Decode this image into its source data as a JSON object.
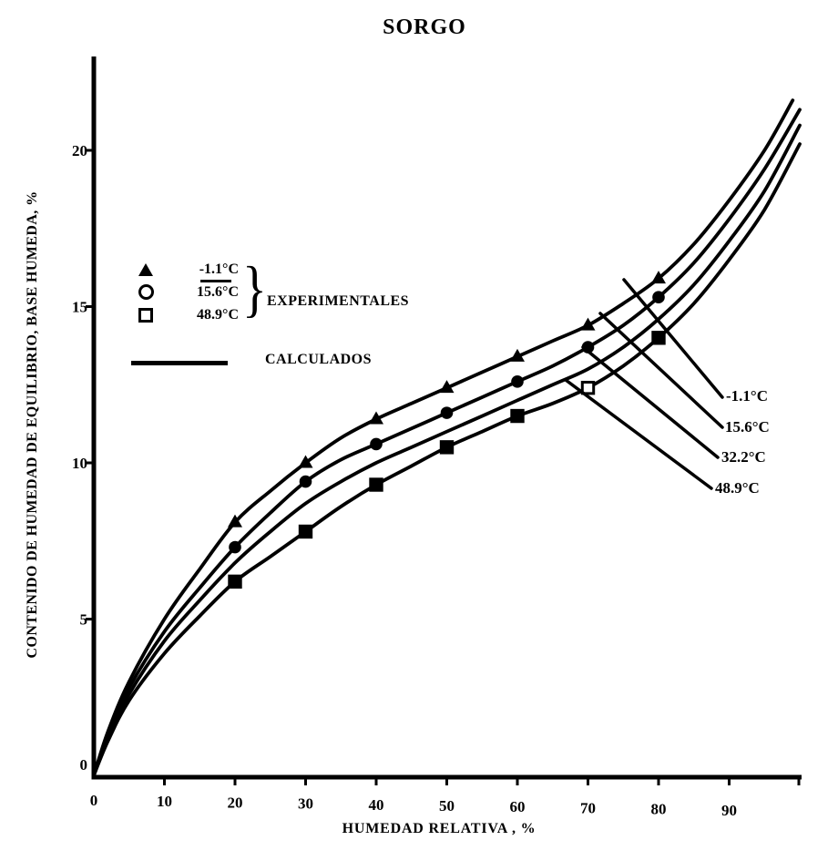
{
  "title": "SORGO",
  "colors": {
    "ink": "#000000",
    "paper": "#ffffff"
  },
  "legend": {
    "experimental_label": "EXPERIMENTALES",
    "calculated_label": "CALCULADOS",
    "items": [
      {
        "marker": "triangle-icon",
        "label": "-1.1°C"
      },
      {
        "marker": "circle-icon",
        "label": "15.6°C"
      },
      {
        "marker": "square-icon",
        "label": "48.9°C"
      }
    ]
  },
  "curve_labels": [
    {
      "label": "-1.1°C"
    },
    {
      "label": "15.6°C"
    },
    {
      "label": "32.2°C"
    },
    {
      "label": "48.9°C"
    }
  ],
  "chart_data": {
    "type": "line",
    "title": "SORGO",
    "xlabel": "HUMEDAD RELATIVA , %",
    "ylabel": "CONTENIDO DE HUMEDAD DE EQUILIBRIO, BASE HUMEDA, %",
    "xlim": [
      0,
      100
    ],
    "ylim": [
      0,
      23
    ],
    "x_ticks": [
      0,
      10,
      20,
      30,
      40,
      50,
      60,
      70,
      80,
      90
    ],
    "y_ticks": [
      0,
      5,
      10,
      15,
      20
    ],
    "grid": false,
    "legend_position": "upper-left-inside",
    "series": [
      {
        "name": "-1.1°C",
        "marker": "triangle",
        "curve": [
          [
            0,
            0
          ],
          [
            2,
            1.4
          ],
          [
            5,
            3.0
          ],
          [
            10,
            5.0
          ],
          [
            15,
            6.6
          ],
          [
            20,
            8.1
          ],
          [
            25,
            9.1
          ],
          [
            30,
            10.0
          ],
          [
            35,
            10.8
          ],
          [
            40,
            11.4
          ],
          [
            45,
            11.9
          ],
          [
            50,
            12.4
          ],
          [
            55,
            12.9
          ],
          [
            60,
            13.4
          ],
          [
            65,
            13.9
          ],
          [
            70,
            14.4
          ],
          [
            75,
            15.1
          ],
          [
            80,
            15.9
          ],
          [
            85,
            17.0
          ],
          [
            90,
            18.4
          ],
          [
            95,
            20.0
          ],
          [
            99,
            21.6
          ]
        ],
        "experimental_points": [
          [
            20,
            8.1
          ],
          [
            30,
            10.0
          ],
          [
            40,
            11.4
          ],
          [
            50,
            12.4
          ],
          [
            60,
            13.4
          ],
          [
            70,
            14.4
          ],
          [
            80,
            15.9
          ]
        ]
      },
      {
        "name": "15.6°C",
        "marker": "circle",
        "curve": [
          [
            0,
            0
          ],
          [
            2,
            1.3
          ],
          [
            5,
            2.8
          ],
          [
            10,
            4.6
          ],
          [
            15,
            6.0
          ],
          [
            20,
            7.3
          ],
          [
            25,
            8.4
          ],
          [
            30,
            9.4
          ],
          [
            35,
            10.1
          ],
          [
            40,
            10.6
          ],
          [
            45,
            11.1
          ],
          [
            50,
            11.6
          ],
          [
            55,
            12.1
          ],
          [
            60,
            12.6
          ],
          [
            65,
            13.1
          ],
          [
            70,
            13.7
          ],
          [
            75,
            14.4
          ],
          [
            80,
            15.3
          ],
          [
            85,
            16.4
          ],
          [
            90,
            17.8
          ],
          [
            95,
            19.4
          ],
          [
            100,
            21.3
          ]
        ],
        "experimental_points": [
          [
            20,
            7.3
          ],
          [
            30,
            9.4
          ],
          [
            40,
            10.6
          ],
          [
            50,
            11.6
          ],
          [
            60,
            12.6
          ],
          [
            70,
            13.7
          ],
          [
            80,
            15.3
          ]
        ]
      },
      {
        "name": "32.2°C",
        "marker": "none",
        "curve": [
          [
            0,
            0
          ],
          [
            2,
            1.2
          ],
          [
            5,
            2.6
          ],
          [
            10,
            4.3
          ],
          [
            15,
            5.6
          ],
          [
            20,
            6.8
          ],
          [
            25,
            7.8
          ],
          [
            30,
            8.7
          ],
          [
            35,
            9.4
          ],
          [
            40,
            10.0
          ],
          [
            45,
            10.5
          ],
          [
            50,
            11.0
          ],
          [
            55,
            11.5
          ],
          [
            60,
            12.0
          ],
          [
            65,
            12.5
          ],
          [
            70,
            13.0
          ],
          [
            75,
            13.7
          ],
          [
            80,
            14.6
          ],
          [
            85,
            15.7
          ],
          [
            90,
            17.1
          ],
          [
            95,
            18.7
          ],
          [
            100,
            20.8
          ]
        ],
        "experimental_points": []
      },
      {
        "name": "48.9°C",
        "marker": "square",
        "curve": [
          [
            0,
            0
          ],
          [
            2,
            1.1
          ],
          [
            5,
            2.4
          ],
          [
            10,
            3.9
          ],
          [
            15,
            5.1
          ],
          [
            20,
            6.2
          ],
          [
            25,
            7.0
          ],
          [
            30,
            7.8
          ],
          [
            35,
            8.6
          ],
          [
            40,
            9.3
          ],
          [
            45,
            9.9
          ],
          [
            50,
            10.5
          ],
          [
            55,
            11.0
          ],
          [
            60,
            11.5
          ],
          [
            65,
            11.9
          ],
          [
            70,
            12.4
          ],
          [
            75,
            13.1
          ],
          [
            80,
            14.0
          ],
          [
            85,
            15.1
          ],
          [
            90,
            16.5
          ],
          [
            95,
            18.1
          ],
          [
            100,
            20.2
          ]
        ],
        "experimental_points": [
          [
            20,
            6.2
          ],
          [
            30,
            7.8
          ],
          [
            40,
            9.3
          ],
          [
            50,
            10.5
          ],
          [
            60,
            11.5
          ],
          [
            70,
            12.4,
            "open"
          ],
          [
            80,
            14.0
          ]
        ]
      }
    ]
  }
}
